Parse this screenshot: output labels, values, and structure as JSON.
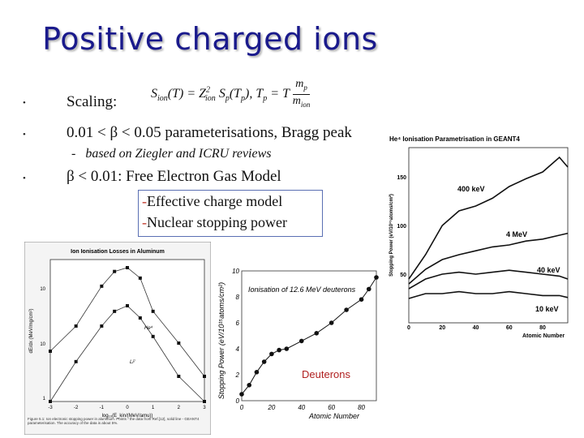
{
  "slide": {
    "title": "Positive charged ions",
    "bullets": [
      {
        "marker": "•",
        "text": "Scaling:"
      },
      {
        "marker": "•",
        "text": "0.01 < β < 0.05 parameterisations, Bragg peak"
      },
      {
        "marker": "•",
        "text": "β < 0.01: Free Electron Gas Model"
      }
    ],
    "subbullet": {
      "marker": "-",
      "text": "based on Ziegler and ICRU reviews"
    },
    "formula": {
      "lhs": "S",
      "lhs_sub": "ion",
      "arg": "(T) = Z",
      "z_sub": "ion",
      "z_sup": "2",
      "mid": "S",
      "mid_sub": "p",
      "arg2": "(T",
      "arg2_sub": "p",
      "arg2_end": "),  T",
      "t_sub": "p",
      "eq": " = T",
      "num": "m",
      "num_sub": "p",
      "den": "m",
      "den_sub": "ion"
    },
    "boxed": [
      {
        "marker": "-",
        "text": "Effective charge model"
      },
      {
        "marker": "-",
        "text": "Nuclear stopping power"
      }
    ]
  },
  "figure_left": {
    "title": "Ion Ionisation Losses in Aluminum",
    "ylabel": "dE/dx (MeV/mg/cm²)",
    "xlabel": "log₁₀(E_kin/(MeV/amu))",
    "yticks": [
      "10",
      "10",
      "1"
    ],
    "xticks": [
      "-3",
      "-2",
      "-1",
      "0",
      "1",
      "2",
      "3"
    ],
    "curve_labels": [
      "He⁴",
      "Li⁷"
    ],
    "caption": "Figure 5.1: Ion electronic stopping power in aluminum. Points - the data from Ref.[12], solid line - GEANT4 parameterisation. The accuracy of the data is about 5%."
  },
  "figure_mid": {
    "title": "Ionisation of 12.6 MeV deuterons",
    "ylabel": "Stopping Power (eV/10¹⁵atoms/cm²)",
    "xlabel": "Atomic Number",
    "yticks": [
      "0",
      "2",
      "4",
      "6",
      "8",
      "10"
    ],
    "xticks": [
      "0",
      "20",
      "40",
      "60",
      "80"
    ],
    "label": "Deuterons"
  },
  "figure_right": {
    "title": "He⁴ Ionisation Parametrisation in GEANT4",
    "ylabel": "Stopping Power (eV/10¹⁵atoms/cm²)",
    "xlabel": "Atomic Number",
    "yticks": [
      "150",
      "100",
      "50"
    ],
    "xticks": [
      "0",
      "20",
      "40",
      "60",
      "80"
    ],
    "curve_labels": [
      "400 keV",
      "4 MeV",
      "40 keV",
      "10 keV"
    ]
  },
  "chart_data": [
    {
      "type": "line",
      "title": "Ion Ionisation Losses in Aluminum",
      "series": [
        {
          "name": "He⁴",
          "x": [
            -3,
            -2,
            -1,
            -0.5,
            0,
            0.5,
            1,
            2,
            3
          ],
          "y": [
            2,
            4,
            12,
            18,
            20,
            15,
            6,
            2.5,
            1
          ]
        },
        {
          "name": "Li⁷",
          "x": [
            -3,
            -2,
            -1,
            -0.5,
            0,
            0.5,
            1,
            2,
            3
          ],
          "y": [
            0.5,
            1.5,
            4,
            6,
            7,
            5,
            3,
            1,
            0.5
          ]
        }
      ]
    },
    {
      "type": "line",
      "title": "Ionisation of 12.6 MeV deuterons",
      "xlabel": "Atomic Number",
      "ylabel": "Stopping Power (eV/10¹⁵atoms/cm²)",
      "x": [
        0,
        5,
        10,
        15,
        20,
        25,
        30,
        40,
        50,
        60,
        70,
        80,
        85,
        90
      ],
      "y": [
        0.5,
        1.2,
        2.2,
        3.0,
        3.6,
        3.9,
        4.0,
        4.6,
        5.2,
        6.0,
        7.0,
        7.8,
        8.6,
        9.5
      ],
      "xlim": [
        0,
        90
      ],
      "ylim": [
        0,
        10
      ]
    },
    {
      "type": "line",
      "title": "He⁴ Ionisation Parametrisation in GEANT4",
      "xlabel": "Atomic Number",
      "series": [
        {
          "name": "400 keV",
          "x": [
            0,
            10,
            20,
            30,
            40,
            50,
            60,
            70,
            80,
            90,
            95
          ],
          "y": [
            45,
            70,
            100,
            115,
            120,
            128,
            140,
            148,
            155,
            170,
            160
          ]
        },
        {
          "name": "4 MeV",
          "x": [
            0,
            10,
            20,
            30,
            40,
            50,
            60,
            70,
            80,
            90,
            95
          ],
          "y": [
            40,
            55,
            65,
            70,
            74,
            78,
            80,
            84,
            86,
            90,
            92
          ]
        },
        {
          "name": "40 keV",
          "x": [
            0,
            10,
            20,
            30,
            40,
            50,
            60,
            70,
            80,
            90,
            95
          ],
          "y": [
            35,
            45,
            50,
            52,
            50,
            52,
            54,
            52,
            50,
            48,
            45
          ]
        },
        {
          "name": "10 keV",
          "x": [
            0,
            10,
            20,
            30,
            40,
            50,
            60,
            70,
            80,
            90,
            95
          ],
          "y": [
            25,
            30,
            30,
            32,
            30,
            30,
            32,
            30,
            28,
            28,
            26
          ]
        }
      ],
      "xlim": [
        0,
        95
      ],
      "ylim": [
        0,
        180
      ]
    }
  ]
}
